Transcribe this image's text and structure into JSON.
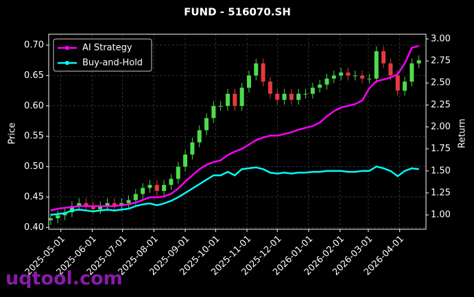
{
  "chart_data": {
    "type": "candlestick",
    "title": "FUND - 516070.SH",
    "x": [
      "2025-04-21",
      "2025-04-28",
      "2025-05-05",
      "2025-05-12",
      "2025-05-19",
      "2025-05-26",
      "2025-06-02",
      "2025-06-09",
      "2025-06-16",
      "2025-06-23",
      "2025-06-30",
      "2025-07-07",
      "2025-07-14",
      "2025-07-21",
      "2025-07-28",
      "2025-08-04",
      "2025-08-11",
      "2025-08-18",
      "2025-08-25",
      "2025-09-01",
      "2025-09-08",
      "2025-09-15",
      "2025-09-22",
      "2025-09-29",
      "2025-10-06",
      "2025-10-13",
      "2025-10-20",
      "2025-10-27",
      "2025-11-03",
      "2025-11-10",
      "2025-11-17",
      "2025-11-24",
      "2025-12-01",
      "2025-12-08",
      "2025-12-15",
      "2025-12-22",
      "2025-12-29",
      "2026-01-05",
      "2026-01-12",
      "2026-01-19",
      "2026-01-26",
      "2026-02-02",
      "2026-02-09",
      "2026-02-16",
      "2026-02-23",
      "2026-03-02",
      "2026-03-09",
      "2026-03-16",
      "2026-03-23",
      "2026-03-30",
      "2026-04-06",
      "2026-04-13",
      "2026-04-20"
    ],
    "open": [
      0.412,
      0.415,
      0.42,
      0.425,
      0.435,
      0.44,
      0.435,
      0.43,
      0.435,
      0.44,
      0.435,
      0.44,
      0.445,
      0.455,
      0.465,
      0.47,
      0.46,
      0.47,
      0.48,
      0.5,
      0.52,
      0.54,
      0.56,
      0.58,
      0.6,
      0.6,
      0.62,
      0.6,
      0.63,
      0.65,
      0.67,
      0.64,
      0.62,
      0.61,
      0.62,
      0.61,
      0.62,
      0.62,
      0.63,
      0.635,
      0.645,
      0.65,
      0.655,
      0.65,
      0.65,
      0.645,
      0.645,
      0.69,
      0.67,
      0.65,
      0.625,
      0.64,
      0.67
    ],
    "high": [
      0.423,
      0.428,
      0.433,
      0.443,
      0.448,
      0.448,
      0.443,
      0.443,
      0.448,
      0.448,
      0.448,
      0.453,
      0.463,
      0.473,
      0.478,
      0.478,
      0.478,
      0.488,
      0.508,
      0.528,
      0.548,
      0.568,
      0.588,
      0.608,
      0.608,
      0.628,
      0.628,
      0.638,
      0.658,
      0.678,
      0.678,
      0.648,
      0.628,
      0.628,
      0.628,
      0.628,
      0.628,
      0.638,
      0.643,
      0.653,
      0.658,
      0.663,
      0.663,
      0.658,
      0.658,
      0.653,
      0.698,
      0.698,
      0.678,
      0.658,
      0.648,
      0.678,
      0.683
    ],
    "low": [
      0.404,
      0.407,
      0.412,
      0.417,
      0.427,
      0.427,
      0.422,
      0.422,
      0.427,
      0.427,
      0.427,
      0.432,
      0.437,
      0.447,
      0.457,
      0.452,
      0.452,
      0.462,
      0.472,
      0.492,
      0.512,
      0.532,
      0.552,
      0.572,
      0.592,
      0.592,
      0.592,
      0.592,
      0.622,
      0.642,
      0.632,
      0.612,
      0.602,
      0.602,
      0.602,
      0.602,
      0.612,
      0.612,
      0.622,
      0.627,
      0.637,
      0.642,
      0.642,
      0.642,
      0.637,
      0.637,
      0.637,
      0.662,
      0.642,
      0.617,
      0.617,
      0.632,
      0.662
    ],
    "close": [
      0.415,
      0.42,
      0.425,
      0.435,
      0.44,
      0.435,
      0.43,
      0.435,
      0.44,
      0.435,
      0.44,
      0.445,
      0.455,
      0.465,
      0.47,
      0.46,
      0.47,
      0.48,
      0.5,
      0.52,
      0.54,
      0.56,
      0.58,
      0.6,
      0.6,
      0.62,
      0.6,
      0.63,
      0.65,
      0.67,
      0.64,
      0.62,
      0.61,
      0.62,
      0.61,
      0.62,
      0.62,
      0.63,
      0.635,
      0.645,
      0.65,
      0.655,
      0.65,
      0.65,
      0.645,
      0.645,
      0.69,
      0.67,
      0.65,
      0.625,
      0.64,
      0.67,
      0.675
    ],
    "up_color": "#4ddc4d",
    "down_color": "#e8383d",
    "series": [
      {
        "name": "AI Strategy",
        "color": "#ff00ff",
        "axis": "y2",
        "values": [
          1.05,
          1.07,
          1.08,
          1.09,
          1.1,
          1.1,
          1.1,
          1.1,
          1.1,
          1.1,
          1.11,
          1.12,
          1.14,
          1.17,
          1.2,
          1.2,
          1.21,
          1.24,
          1.3,
          1.38,
          1.45,
          1.52,
          1.57,
          1.6,
          1.62,
          1.68,
          1.72,
          1.75,
          1.8,
          1.85,
          1.88,
          1.9,
          1.9,
          1.92,
          1.94,
          1.97,
          1.99,
          2.01,
          2.05,
          2.12,
          2.18,
          2.22,
          2.24,
          2.26,
          2.3,
          2.44,
          2.52,
          2.54,
          2.56,
          2.6,
          2.72,
          2.9,
          2.92
        ]
      },
      {
        "name": "Buy-and-Hold",
        "color": "#00ffff",
        "axis": "y2",
        "values": [
          1.0,
          1.01,
          1.02,
          1.05,
          1.06,
          1.05,
          1.04,
          1.05,
          1.06,
          1.05,
          1.06,
          1.07,
          1.1,
          1.12,
          1.13,
          1.11,
          1.13,
          1.16,
          1.2,
          1.25,
          1.3,
          1.35,
          1.4,
          1.45,
          1.45,
          1.49,
          1.45,
          1.52,
          1.53,
          1.54,
          1.52,
          1.48,
          1.47,
          1.48,
          1.47,
          1.48,
          1.48,
          1.49,
          1.49,
          1.5,
          1.5,
          1.5,
          1.49,
          1.49,
          1.5,
          1.5,
          1.55,
          1.53,
          1.5,
          1.44,
          1.5,
          1.53,
          1.52
        ]
      }
    ],
    "xlim": [
      "2025-04-19",
      "2026-04-27"
    ],
    "xticks": [
      "2025-05-01",
      "2025-06-01",
      "2025-07-01",
      "2025-08-01",
      "2025-09-01",
      "2025-10-01",
      "2025-11-01",
      "2025-12-01",
      "2026-01-01",
      "2026-02-01",
      "2026-03-01",
      "2026-04-01"
    ],
    "ylim": [
      0.397,
      0.718
    ],
    "yticks": [
      {
        "value": 0.4,
        "label": "0.40"
      },
      {
        "value": 0.45,
        "label": "0.45"
      },
      {
        "value": 0.5,
        "label": "0.50"
      },
      {
        "value": 0.55,
        "label": "0.55"
      },
      {
        "value": 0.6,
        "label": "0.60"
      },
      {
        "value": 0.65,
        "label": "0.65"
      },
      {
        "value": 0.7,
        "label": "0.70"
      }
    ],
    "y2lim": [
      0.837,
      3.054
    ],
    "y2ticks": [
      {
        "value": 1,
        "label": "1.00"
      },
      {
        "value": 1.25,
        "label": "1.25"
      },
      {
        "value": 1.5,
        "label": "1.50"
      },
      {
        "value": 1.75,
        "label": "1.75"
      },
      {
        "value": 2,
        "label": "2.00"
      },
      {
        "value": 2.25,
        "label": "2.25"
      },
      {
        "value": 2.5,
        "label": "2.50"
      },
      {
        "value": 2.75,
        "label": "2.75"
      },
      {
        "value": 3,
        "label": "3.00"
      }
    ],
    "ylabel": "Price",
    "y2label": "Return",
    "grid": true,
    "legend": "upper left"
  },
  "watermark": "uqtool.com"
}
